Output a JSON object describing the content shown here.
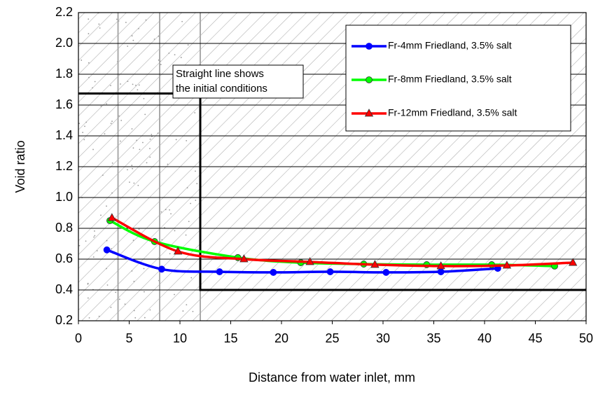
{
  "chart_data": {
    "type": "line",
    "y_label": "Void ratio",
    "x_label": "Distance from water inlet, mm",
    "annotation": [
      "Straight line shows",
      "the initial conditions"
    ],
    "xlim": [
      0,
      50
    ],
    "xticks": [
      0,
      5,
      10,
      15,
      20,
      25,
      30,
      35,
      40,
      45,
      50
    ],
    "ylim": [
      0.2,
      2.2
    ],
    "yticks": [
      0.2,
      0.4,
      0.6,
      0.8,
      {
        "value": 1.0,
        "label": "1.0"
      },
      1.2,
      1.4,
      1.6,
      1.8,
      {
        "value": 2.0,
        "label": "2.0"
      },
      2.2
    ],
    "grid": true,
    "legend": "upper right",
    "zone_lines": [
      3.9,
      8,
      12
    ],
    "initial_line": {
      "color": "#000000",
      "x": [
        0,
        12,
        12,
        50
      ],
      "values": [
        1.675,
        1.675,
        0.4,
        0.4
      ]
    },
    "series": [
      {
        "name": "Fr-4mm Friedland, 3.5% salt",
        "color": "#0000ff",
        "marker": "circle",
        "x": [
          2.8,
          8.2,
          13.9,
          19.2,
          24.8,
          30.3,
          35.7,
          41.3
        ],
        "values": [
          0.66,
          0.535,
          0.518,
          0.514,
          0.518,
          0.514,
          0.518,
          0.54
        ]
      },
      {
        "name": "Fr-8mm Friedland, 3.5% salt",
        "color": "#00ff00",
        "marker": "circle",
        "x": [
          3.1,
          7.5,
          15.7,
          21.9,
          28.1,
          34.3,
          40.7,
          46.9
        ],
        "values": [
          0.85,
          0.714,
          0.61,
          0.577,
          0.568,
          0.564,
          0.564,
          0.555
        ]
      },
      {
        "name": "Fr-12mm Friedland, 3.5% salt",
        "color": "#ff0000",
        "marker": "triangle",
        "x": [
          3.3,
          9.8,
          16.3,
          22.8,
          29.2,
          35.7,
          42.2,
          48.7
        ],
        "values": [
          0.868,
          0.65,
          0.6,
          0.582,
          0.564,
          0.555,
          0.559,
          0.577
        ]
      }
    ]
  }
}
